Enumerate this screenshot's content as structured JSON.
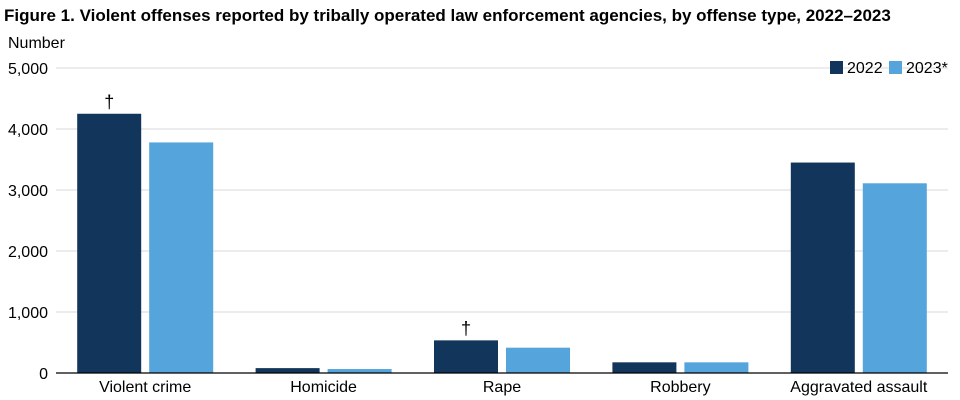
{
  "chart_data": {
    "type": "bar",
    "title": "Figure 1. Violent offenses reported by tribally operated law enforcement agencies, by offense type, 2022–2023",
    "ylabel": "Number",
    "xlabel": "",
    "ylim": [
      0,
      5000
    ],
    "yticks": [
      0,
      1000,
      2000,
      3000,
      4000,
      5000
    ],
    "ytick_labels": [
      "0",
      "1,000",
      "2,000",
      "3,000",
      "4,000",
      "5,000"
    ],
    "grid": true,
    "legend_position": "top-right",
    "categories": [
      "Violent crime",
      "Homicide",
      "Rape",
      "Robbery",
      "Aggravated assault"
    ],
    "series": [
      {
        "name": "2022",
        "color": "#12355b",
        "values": [
          4250,
          80,
          535,
          175,
          3450
        ],
        "annotations": [
          "†",
          "",
          "†",
          "",
          ""
        ]
      },
      {
        "name": "2023*",
        "color": "#55a5dc",
        "values": [
          3780,
          65,
          415,
          175,
          3110
        ],
        "annotations": [
          "",
          "",
          "",
          "",
          ""
        ]
      }
    ]
  }
}
